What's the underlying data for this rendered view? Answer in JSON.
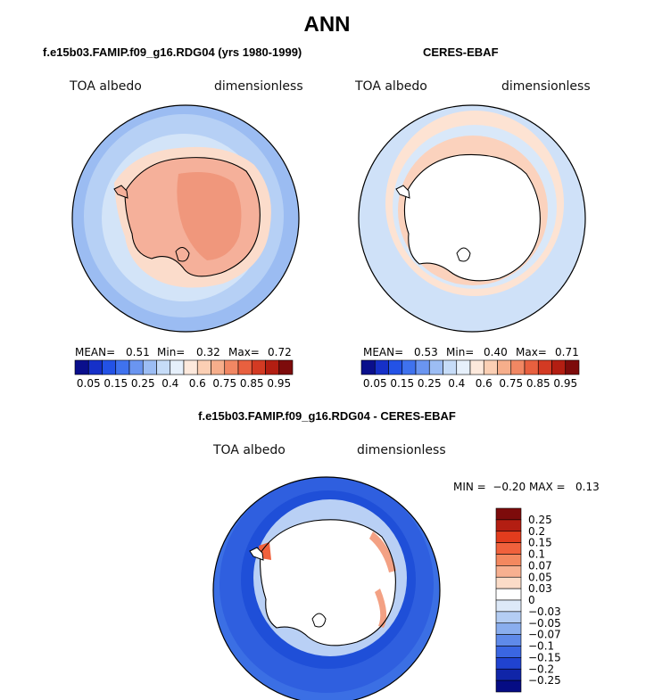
{
  "main_title": "ANN",
  "panels": [
    {
      "title": "f.e15b03.FAMIP.f09_g16.RDG04 (yrs 1980-1999)",
      "left_label": "TOA albedo",
      "right_label": "dimensionless",
      "stats": {
        "mean_label": "MEAN=",
        "mean": "0.51",
        "min_label": "Min=",
        "min": "0.32",
        "max_label": "Max=",
        "max": "0.72"
      }
    },
    {
      "title": "CERES-EBAF",
      "left_label": "TOA albedo",
      "right_label": "dimensionless",
      "stats": {
        "mean_label": "MEAN=",
        "mean": "0.53",
        "min_label": "Min=",
        "min": "0.40",
        "max_label": "Max=",
        "max": "0.71"
      }
    },
    {
      "title": "f.e15b03.FAMIP.f09_g16.RDG04 - CERES-EBAF",
      "left_label": "TOA albedo",
      "right_label": "dimensionless",
      "stats_line": "MIN =  −0.20 MAX =   0.13"
    }
  ],
  "abs_colorbar": {
    "colors": [
      "#0a0f8c",
      "#1630c8",
      "#2352e6",
      "#3f72ee",
      "#6a95f0",
      "#9cbdf4",
      "#c6dcf8",
      "#e6f0fb",
      "#fde9dc",
      "#fbcfb4",
      "#f6ae8b",
      "#f18763",
      "#e8603f",
      "#d33a23",
      "#b31e12",
      "#7d0b0b"
    ],
    "tick_labels": [
      "0.05",
      "0.15",
      "0.25",
      "0.4",
      "0.6",
      "0.75",
      "0.85",
      "0.95"
    ]
  },
  "diff_colorbar": {
    "colors": [
      "#7d0b0b",
      "#b31e12",
      "#e23c1d",
      "#f0613c",
      "#f3885f",
      "#f7b090",
      "#fbdcc8",
      "#ffffff",
      "#dde9f8",
      "#b4cdf3",
      "#8aaeee",
      "#5f8ae9",
      "#3a66e2",
      "#2043d0",
      "#1025a8",
      "#050c84"
    ],
    "tick_labels": [
      "0.25",
      "0.2",
      "0.15",
      "0.1",
      "0.07",
      "0.05",
      "0.03",
      "0",
      "−0.03",
      "−0.05",
      "−0.07",
      "−0.1",
      "−0.15",
      "−0.2",
      "−0.25"
    ]
  },
  "map_colors": {
    "ocean_light": "#c8def7",
    "ocean_mid": "#a9c6f3",
    "ocean_blue": "#8aaeee",
    "ice_peach": "#fbdccb",
    "land_salmon": "#f5b09a",
    "land_deep": "#f0977c",
    "diff_dark": "#1f4fd8",
    "diff_mid": "#3b6fe4",
    "diff_light": "#b9d0f5",
    "diff_red": "#f3a184"
  }
}
